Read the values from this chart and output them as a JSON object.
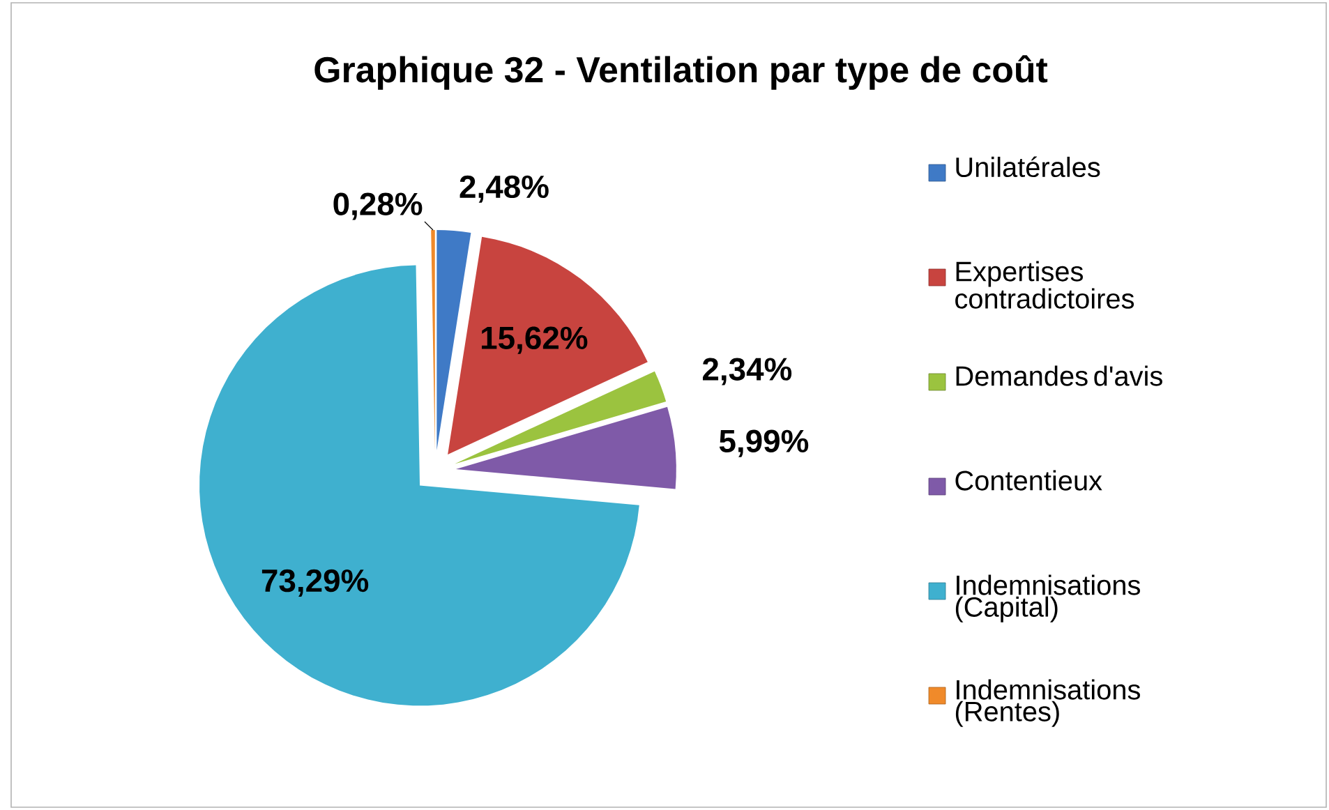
{
  "chart_data": {
    "type": "pie",
    "title": "Graphique 32 - Ventilation par type de coût",
    "categories": [
      "Unilatérales",
      "Expertises contradictoires",
      "Demandes d'avis",
      "Contentieux",
      "Indemnisations (Capital)",
      "Indemnisations (Rentes)"
    ],
    "values": [
      2.48,
      15.62,
      2.34,
      5.99,
      73.29,
      0.28
    ],
    "value_labels": [
      "2,48%",
      "15,62%",
      "2,34%",
      "5,99%",
      "73,29%",
      "0,28%"
    ],
    "colors": [
      "#3f7ac6",
      "#c8443f",
      "#9bc33f",
      "#7f5aa8",
      "#3fb0cf",
      "#f08a2a"
    ],
    "legend": "right"
  }
}
